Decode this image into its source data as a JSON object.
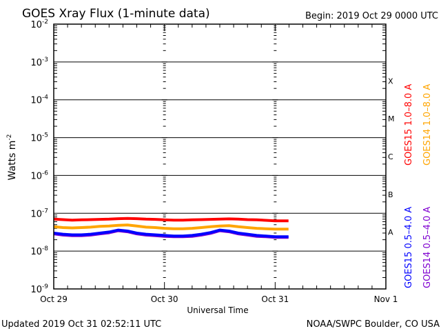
{
  "chart_data": {
    "type": "line",
    "title": "GOES Xray Flux (1-minute data)",
    "begin_label": "Begin:  2019 Oct 29 0000 UTC",
    "xlabel": "Universal Time",
    "ylabel": "Watts m",
    "ylabel_sup": "-2",
    "yscale": "log",
    "ylim": [
      1e-09,
      0.01
    ],
    "y_ticks": [
      {
        "base": "10",
        "exp": "-2",
        "value": 0.01
      },
      {
        "base": "10",
        "exp": "-3",
        "value": 0.001
      },
      {
        "base": "10",
        "exp": "-4",
        "value": 0.0001
      },
      {
        "base": "10",
        "exp": "-5",
        "value": 1e-05
      },
      {
        "base": "10",
        "exp": "-6",
        "value": 1e-06
      },
      {
        "base": "10",
        "exp": "-7",
        "value": 1e-07
      },
      {
        "base": "10",
        "exp": "-8",
        "value": 1e-08
      },
      {
        "base": "10",
        "exp": "-9",
        "value": 1e-09
      }
    ],
    "xlim_hours": [
      0,
      72
    ],
    "x_ticks": [
      {
        "label": "Oct 29",
        "hour": 0
      },
      {
        "label": "Oct 30",
        "hour": 24
      },
      {
        "label": "Oct 31",
        "hour": 48
      },
      {
        "label": "Nov 1",
        "hour": 72
      }
    ],
    "flare_classes": [
      {
        "label": "X",
        "value": 0.000316
      },
      {
        "label": "M",
        "value": 3.16e-05
      },
      {
        "label": "C",
        "value": 3.16e-06
      },
      {
        "label": "B",
        "value": 3.16e-07
      },
      {
        "label": "A",
        "value": 3.16e-08
      }
    ],
    "x_hours": [
      0,
      2,
      4,
      6,
      8,
      10,
      12,
      14,
      16,
      18,
      20,
      22,
      24,
      26,
      28,
      30,
      32,
      34,
      36,
      38,
      40,
      42,
      44,
      46,
      48,
      50.9
    ],
    "series": [
      {
        "name": "GOES15 1.0-8.0 A",
        "color": "#ff0000",
        "values": [
          7e-08,
          6.8e-08,
          6.6e-08,
          6.7e-08,
          6.8e-08,
          6.9e-08,
          7e-08,
          7.2e-08,
          7.3e-08,
          7.2e-08,
          7e-08,
          6.9e-08,
          6.7e-08,
          6.6e-08,
          6.6e-08,
          6.7e-08,
          6.8e-08,
          6.9e-08,
          7e-08,
          7.1e-08,
          7e-08,
          6.8e-08,
          6.7e-08,
          6.5e-08,
          6.3e-08,
          6.3e-08
        ]
      },
      {
        "name": "GOES14 1.0-8.0 A",
        "color": "#ffa500",
        "values": [
          4.4e-08,
          4.2e-08,
          4.1e-08,
          4.2e-08,
          4.3e-08,
          4.5e-08,
          4.6e-08,
          4.8e-08,
          4.9e-08,
          4.6e-08,
          4.3e-08,
          4.2e-08,
          4e-08,
          3.9e-08,
          3.9e-08,
          4e-08,
          4.2e-08,
          4.4e-08,
          4.6e-08,
          4.7e-08,
          4.4e-08,
          4.2e-08,
          4e-08,
          3.9e-08,
          3.8e-08,
          3.8e-08
        ]
      },
      {
        "name": "GOES14 0.5-4.0 A",
        "color": "#7f00d0",
        "values": [
          2.85e-08,
          2.65e-08,
          2.55e-08,
          2.55e-08,
          2.65e-08,
          2.85e-08,
          3.05e-08,
          3.45e-08,
          3.25e-08,
          2.85e-08,
          2.65e-08,
          2.55e-08,
          2.45e-08,
          2.4e-08,
          2.4e-08,
          2.45e-08,
          2.65e-08,
          2.95e-08,
          3.45e-08,
          3.25e-08,
          2.85e-08,
          2.65e-08,
          2.45e-08,
          2.4e-08,
          2.3e-08,
          2.3e-08
        ]
      },
      {
        "name": "GOES15 0.5-4.0 A",
        "color": "#0000ff",
        "values": [
          3e-08,
          2.8e-08,
          2.7e-08,
          2.7e-08,
          2.8e-08,
          3e-08,
          3.2e-08,
          3.6e-08,
          3.4e-08,
          3e-08,
          2.8e-08,
          2.7e-08,
          2.6e-08,
          2.5e-08,
          2.5e-08,
          2.6e-08,
          2.8e-08,
          3.1e-08,
          3.6e-08,
          3.4e-08,
          3e-08,
          2.8e-08,
          2.6e-08,
          2.5e-08,
          2.4e-08,
          2.4e-08
        ]
      }
    ],
    "legend": [
      {
        "label": "GOES15 1.0–8.0 A",
        "color": "#ff0000",
        "col": 0,
        "row": 0
      },
      {
        "label": "GOES14 1.0–8.0 A",
        "color": "#ffa500",
        "col": 1,
        "row": 0
      },
      {
        "label": "GOES15 0.5–4.0 A",
        "color": "#0000ff",
        "col": 0,
        "row": 1
      },
      {
        "label": "GOES14 0.5–4.0 A",
        "color": "#7f00d0",
        "col": 1,
        "row": 1
      }
    ],
    "legend_placement": "right"
  },
  "footer": {
    "updated": "Updated 2019 Oct 31 02:52:11 UTC",
    "credit": "NOAA/SWPC Boulder, CO USA"
  }
}
